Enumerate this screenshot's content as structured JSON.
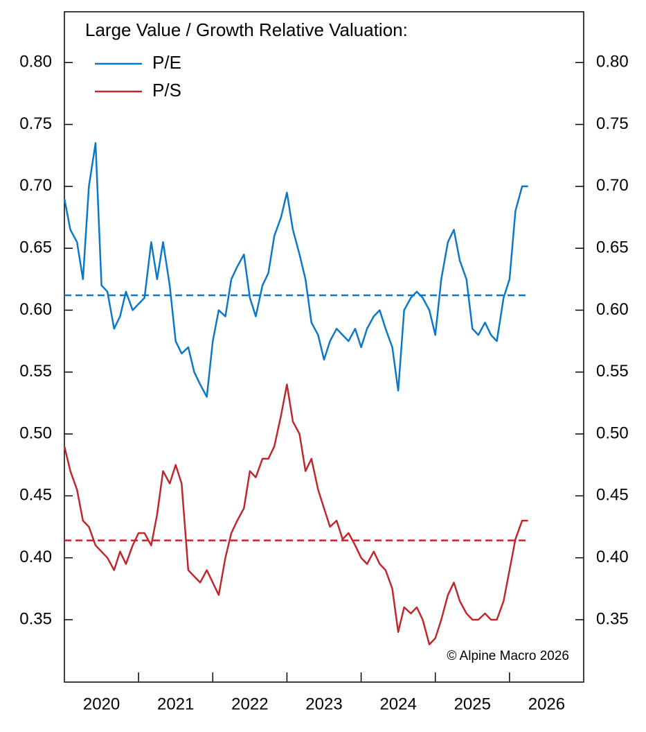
{
  "chart_data": {
    "type": "line",
    "title": "Large Value / Growth Relative Valuation:",
    "annotation": "© Alpine Macro 2026",
    "x": [
      2020.0,
      2020.08,
      2020.17,
      2020.25,
      2020.33,
      2020.42,
      2020.5,
      2020.58,
      2020.67,
      2020.75,
      2020.83,
      2020.92,
      2021.0,
      2021.08,
      2021.17,
      2021.25,
      2021.33,
      2021.42,
      2021.5,
      2021.58,
      2021.67,
      2021.75,
      2021.83,
      2021.92,
      2022.0,
      2022.08,
      2022.17,
      2022.25,
      2022.33,
      2022.42,
      2022.5,
      2022.58,
      2022.67,
      2022.75,
      2022.83,
      2022.92,
      2023.0,
      2023.08,
      2023.17,
      2023.25,
      2023.33,
      2023.42,
      2023.5,
      2023.58,
      2023.67,
      2023.75,
      2023.83,
      2023.92,
      2024.0,
      2024.08,
      2024.17,
      2024.25,
      2024.33,
      2024.42,
      2024.5,
      2024.58,
      2024.67,
      2024.75,
      2024.83,
      2024.92,
      2025.0,
      2025.08,
      2025.17,
      2025.25,
      2025.33,
      2025.42,
      2025.5,
      2025.58,
      2025.67,
      2025.75,
      2025.83,
      2025.92,
      2026.0,
      2026.08,
      2026.17,
      2026.25
    ],
    "series": [
      {
        "name": "P/E",
        "color": "#0a78c8",
        "mean": 0.612,
        "values": [
          0.69,
          0.665,
          0.655,
          0.625,
          0.7,
          0.735,
          0.62,
          0.615,
          0.585,
          0.595,
          0.615,
          0.6,
          0.605,
          0.61,
          0.655,
          0.625,
          0.655,
          0.62,
          0.575,
          0.565,
          0.57,
          0.55,
          0.54,
          0.53,
          0.575,
          0.6,
          0.595,
          0.625,
          0.635,
          0.645,
          0.61,
          0.595,
          0.62,
          0.63,
          0.66,
          0.675,
          0.695,
          0.665,
          0.645,
          0.625,
          0.59,
          0.58,
          0.56,
          0.575,
          0.585,
          0.58,
          0.575,
          0.585,
          0.57,
          0.585,
          0.595,
          0.6,
          0.585,
          0.57,
          0.535,
          0.6,
          0.61,
          0.615,
          0.61,
          0.6,
          0.58,
          0.625,
          0.655,
          0.665,
          0.64,
          0.625,
          0.585,
          0.58,
          0.59,
          0.58,
          0.575,
          0.61,
          0.625,
          0.68,
          0.7,
          0.7
        ]
      },
      {
        "name": "P/S",
        "color": "#c0272d",
        "mean": 0.414,
        "values": [
          0.49,
          0.47,
          0.455,
          0.43,
          0.425,
          0.41,
          0.405,
          0.4,
          0.39,
          0.405,
          0.395,
          0.41,
          0.42,
          0.42,
          0.41,
          0.435,
          0.47,
          0.46,
          0.475,
          0.46,
          0.39,
          0.385,
          0.38,
          0.39,
          0.38,
          0.37,
          0.4,
          0.42,
          0.43,
          0.44,
          0.47,
          0.465,
          0.48,
          0.48,
          0.49,
          0.515,
          0.54,
          0.51,
          0.5,
          0.47,
          0.48,
          0.455,
          0.44,
          0.425,
          0.43,
          0.415,
          0.42,
          0.41,
          0.4,
          0.395,
          0.405,
          0.395,
          0.39,
          0.375,
          0.34,
          0.36,
          0.355,
          0.36,
          0.35,
          0.33,
          0.335,
          0.35,
          0.37,
          0.38,
          0.365,
          0.355,
          0.35,
          0.35,
          0.355,
          0.35,
          0.35,
          0.365,
          0.39,
          0.415,
          0.43,
          0.43
        ]
      }
    ],
    "xlim": [
      2020,
      2027
    ],
    "xticks": [
      2021,
      2022,
      2023,
      2024,
      2025,
      2026
    ],
    "xtick_labels": [
      {
        "value": 2020.5,
        "label": "2020"
      },
      {
        "value": 2021.5,
        "label": "2021"
      },
      {
        "value": 2022.5,
        "label": "2022"
      },
      {
        "value": 2023.5,
        "label": "2023"
      },
      {
        "value": 2024.5,
        "label": "2024"
      },
      {
        "value": 2025.5,
        "label": "2025"
      },
      {
        "value": 2026.5,
        "label": "2026"
      }
    ],
    "ylim": [
      0.2996,
      0.841
    ],
    "yticks": [
      0.35,
      {
        "value": 0.4,
        "label": "0.40"
      },
      0.45,
      {
        "value": 0.5,
        "label": "0.50"
      },
      0.55,
      {
        "value": 0.6,
        "label": "0.60"
      },
      0.65,
      {
        "value": 0.7,
        "label": "0.70"
      },
      0.75,
      {
        "value": 0.8,
        "label": "0.80"
      }
    ],
    "y_axis_both_sides": true,
    "grid": false
  }
}
